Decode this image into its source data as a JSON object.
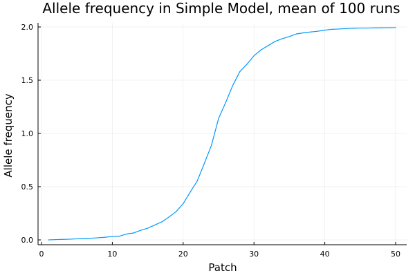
{
  "chart_data": {
    "type": "line",
    "title": "Allele frequency in Simple Model, mean of 100 runs",
    "xlabel": "Patch",
    "ylabel": "Allele frequency",
    "xlim": [
      0,
      50
    ],
    "ylim": [
      0,
      2.0
    ],
    "xticks": [
      0,
      10,
      20,
      30,
      40,
      50
    ],
    "xtick_labels": [
      "0",
      "10",
      "20",
      "30",
      "40",
      "50"
    ],
    "yticks": [
      0.0,
      0.5,
      1.0,
      1.5,
      2.0
    ],
    "ytick_labels": [
      "0.0",
      "0.5",
      "1.0",
      "1.5",
      "2.0"
    ],
    "grid": true,
    "legend": "none",
    "series": [
      {
        "color": "#009AFA",
        "x": [
          1,
          2,
          3,
          4,
          5,
          6,
          7,
          8,
          9,
          10,
          11,
          12,
          13,
          14,
          15,
          16,
          17,
          18,
          19,
          20,
          21,
          22,
          23,
          24,
          25,
          26,
          27,
          28,
          29,
          30,
          31,
          32,
          33,
          34,
          35,
          36,
          37,
          38,
          39,
          40,
          41,
          42,
          43,
          44,
          45,
          46,
          47,
          48,
          49,
          50
        ],
        "y": [
          0.0,
          0.003,
          0.005,
          0.007,
          0.01,
          0.012,
          0.016,
          0.02,
          0.025,
          0.032,
          0.035,
          0.055,
          0.065,
          0.09,
          0.11,
          0.14,
          0.17,
          0.215,
          0.265,
          0.34,
          0.45,
          0.555,
          0.72,
          0.89,
          1.14,
          1.29,
          1.45,
          1.58,
          1.65,
          1.73,
          1.785,
          1.825,
          1.865,
          1.89,
          1.91,
          1.935,
          1.945,
          1.953,
          1.96,
          1.97,
          1.978,
          1.981,
          1.985,
          1.988,
          1.99,
          1.99,
          1.991,
          1.992,
          1.993,
          1.994
        ]
      }
    ]
  }
}
